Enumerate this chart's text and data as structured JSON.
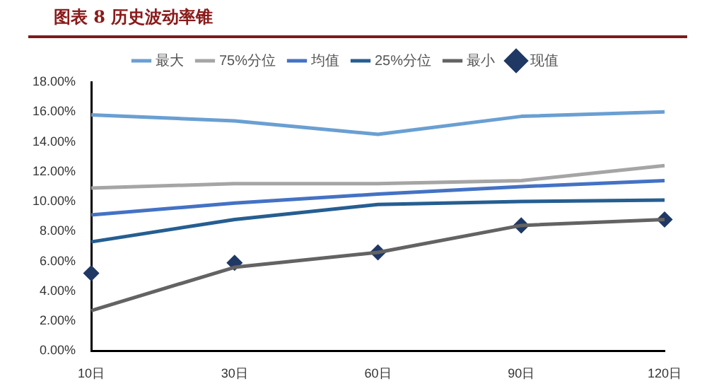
{
  "chart_data": {
    "type": "line",
    "title": "图表 8 历史波动率锥",
    "categories": [
      "10日",
      "30日",
      "60日",
      "90日",
      "120日"
    ],
    "series": [
      {
        "name": "最大",
        "color": "#6a9fd2",
        "values": [
          15.8,
          15.4,
          14.5,
          15.7,
          16.0
        ]
      },
      {
        "name": "75%分位",
        "color": "#a5a5a5",
        "values": [
          10.9,
          11.2,
          11.2,
          11.4,
          12.4
        ]
      },
      {
        "name": "均值",
        "color": "#4472c4",
        "values": [
          9.1,
          9.9,
          10.5,
          11.0,
          11.4
        ]
      },
      {
        "name": "25%分位",
        "color": "#255e91",
        "values": [
          7.3,
          8.8,
          9.8,
          10.0,
          10.1
        ]
      },
      {
        "name": "最小",
        "color": "#636363",
        "values": [
          2.7,
          5.6,
          6.6,
          8.4,
          8.8
        ]
      },
      {
        "name": "现值",
        "color": "#1f3864",
        "type": "scatter",
        "marker": "diamond",
        "values": [
          5.2,
          5.9,
          6.6,
          8.4,
          8.8
        ]
      }
    ],
    "ylim": [
      0,
      18
    ],
    "yticks": [
      {
        "value": 0,
        "label": "0.00%"
      },
      {
        "value": 2,
        "label": "2.00%"
      },
      {
        "value": 4,
        "label": "4.00%"
      },
      {
        "value": 6,
        "label": "6.00%"
      },
      {
        "value": 8,
        "label": "8.00%"
      },
      {
        "value": 10,
        "label": "10.00%"
      },
      {
        "value": 12,
        "label": "12.00%"
      },
      {
        "value": 14,
        "label": "14.00%"
      },
      {
        "value": 16,
        "label": "16.00%"
      },
      {
        "value": 18,
        "label": "18.00%"
      }
    ],
    "grid": false,
    "legend": "top",
    "marker": "none",
    "line_style": "solid"
  }
}
